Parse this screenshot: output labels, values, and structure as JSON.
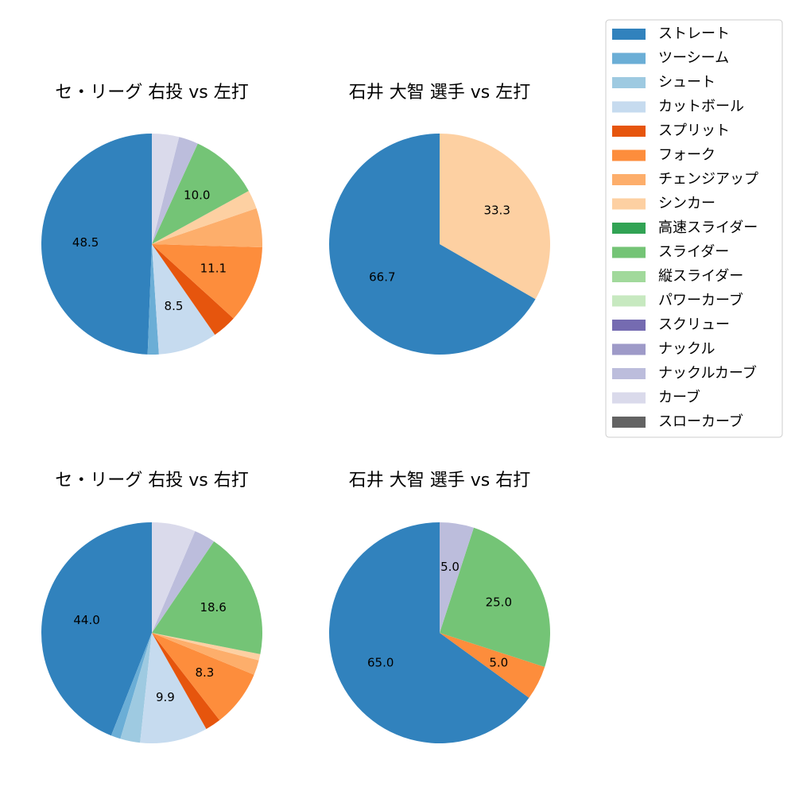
{
  "legend": {
    "items": [
      {
        "label": "ストレート",
        "color": "#3182bd"
      },
      {
        "label": "ツーシーム",
        "color": "#6baed6"
      },
      {
        "label": "シュート",
        "color": "#9ecae1"
      },
      {
        "label": "カットボール",
        "color": "#c6dbef"
      },
      {
        "label": "スプリット",
        "color": "#e6550d"
      },
      {
        "label": "フォーク",
        "color": "#fd8d3c"
      },
      {
        "label": "チェンジアップ",
        "color": "#fdae6b"
      },
      {
        "label": "シンカー",
        "color": "#fdd0a2"
      },
      {
        "label": "高速スライダー",
        "color": "#31a354"
      },
      {
        "label": "スライダー",
        "color": "#74c476"
      },
      {
        "label": "縦スライダー",
        "color": "#a1d99b"
      },
      {
        "label": "パワーカーブ",
        "color": "#c7e9c0"
      },
      {
        "label": "スクリュー",
        "color": "#756bb1"
      },
      {
        "label": "ナックル",
        "color": "#9e9ac8"
      },
      {
        "label": "ナックルカーブ",
        "color": "#bcbddc"
      },
      {
        "label": "カーブ",
        "color": "#dadaeb"
      },
      {
        "label": "スローカーブ",
        "color": "#636363"
      }
    ]
  },
  "chart_data": [
    {
      "type": "pie",
      "title": "セ・リーグ 右投 vs 左打",
      "slices": [
        {
          "label": "ストレート",
          "value": 48.5,
          "shown": "48.5"
        },
        {
          "label": "ツーシーム",
          "value": 1.6
        },
        {
          "label": "カットボール",
          "value": 8.5,
          "shown": "8.5"
        },
        {
          "label": "スプリット",
          "value": 3.5
        },
        {
          "label": "フォーク",
          "value": 11.1,
          "shown": "11.1"
        },
        {
          "label": "チェンジアップ",
          "value": 5.6
        },
        {
          "label": "シンカー",
          "value": 2.7
        },
        {
          "label": "スライダー",
          "value": 10.0,
          "shown": "10.0"
        },
        {
          "label": "ナックルカーブ",
          "value": 2.8
        },
        {
          "label": "カーブ",
          "value": 3.9
        }
      ]
    },
    {
      "type": "pie",
      "title": "石井 大智 選手 vs 左打",
      "slices": [
        {
          "label": "ストレート",
          "value": 66.7,
          "shown": "66.7"
        },
        {
          "label": "シンカー",
          "value": 33.3,
          "shown": "33.3"
        }
      ]
    },
    {
      "type": "pie",
      "title": "セ・リーグ 右投 vs 右打",
      "slices": [
        {
          "label": "ストレート",
          "value": 44.0,
          "shown": "44.0"
        },
        {
          "label": "ツーシーム",
          "value": 1.4
        },
        {
          "label": "シュート",
          "value": 2.9
        },
        {
          "label": "カットボール",
          "value": 9.9,
          "shown": "9.9"
        },
        {
          "label": "スプリット",
          "value": 2.3
        },
        {
          "label": "フォーク",
          "value": 8.3,
          "shown": "8.3"
        },
        {
          "label": "チェンジアップ",
          "value": 2.2
        },
        {
          "label": "シンカー",
          "value": 0.9
        },
        {
          "label": "スライダー",
          "value": 18.6,
          "shown": "18.6"
        },
        {
          "label": "ナックルカーブ",
          "value": 3.1
        },
        {
          "label": "カーブ",
          "value": 6.4
        }
      ]
    },
    {
      "type": "pie",
      "title": "石井 大智 選手 vs 右打",
      "slices": [
        {
          "label": "ストレート",
          "value": 65.0,
          "shown": "65.0"
        },
        {
          "label": "フォーク",
          "value": 5.0,
          "shown": "5.0"
        },
        {
          "label": "スライダー",
          "value": 25.0,
          "shown": "25.0"
        },
        {
          "label": "ナックルカーブ",
          "value": 5.0,
          "shown": "5.0"
        }
      ]
    }
  ]
}
